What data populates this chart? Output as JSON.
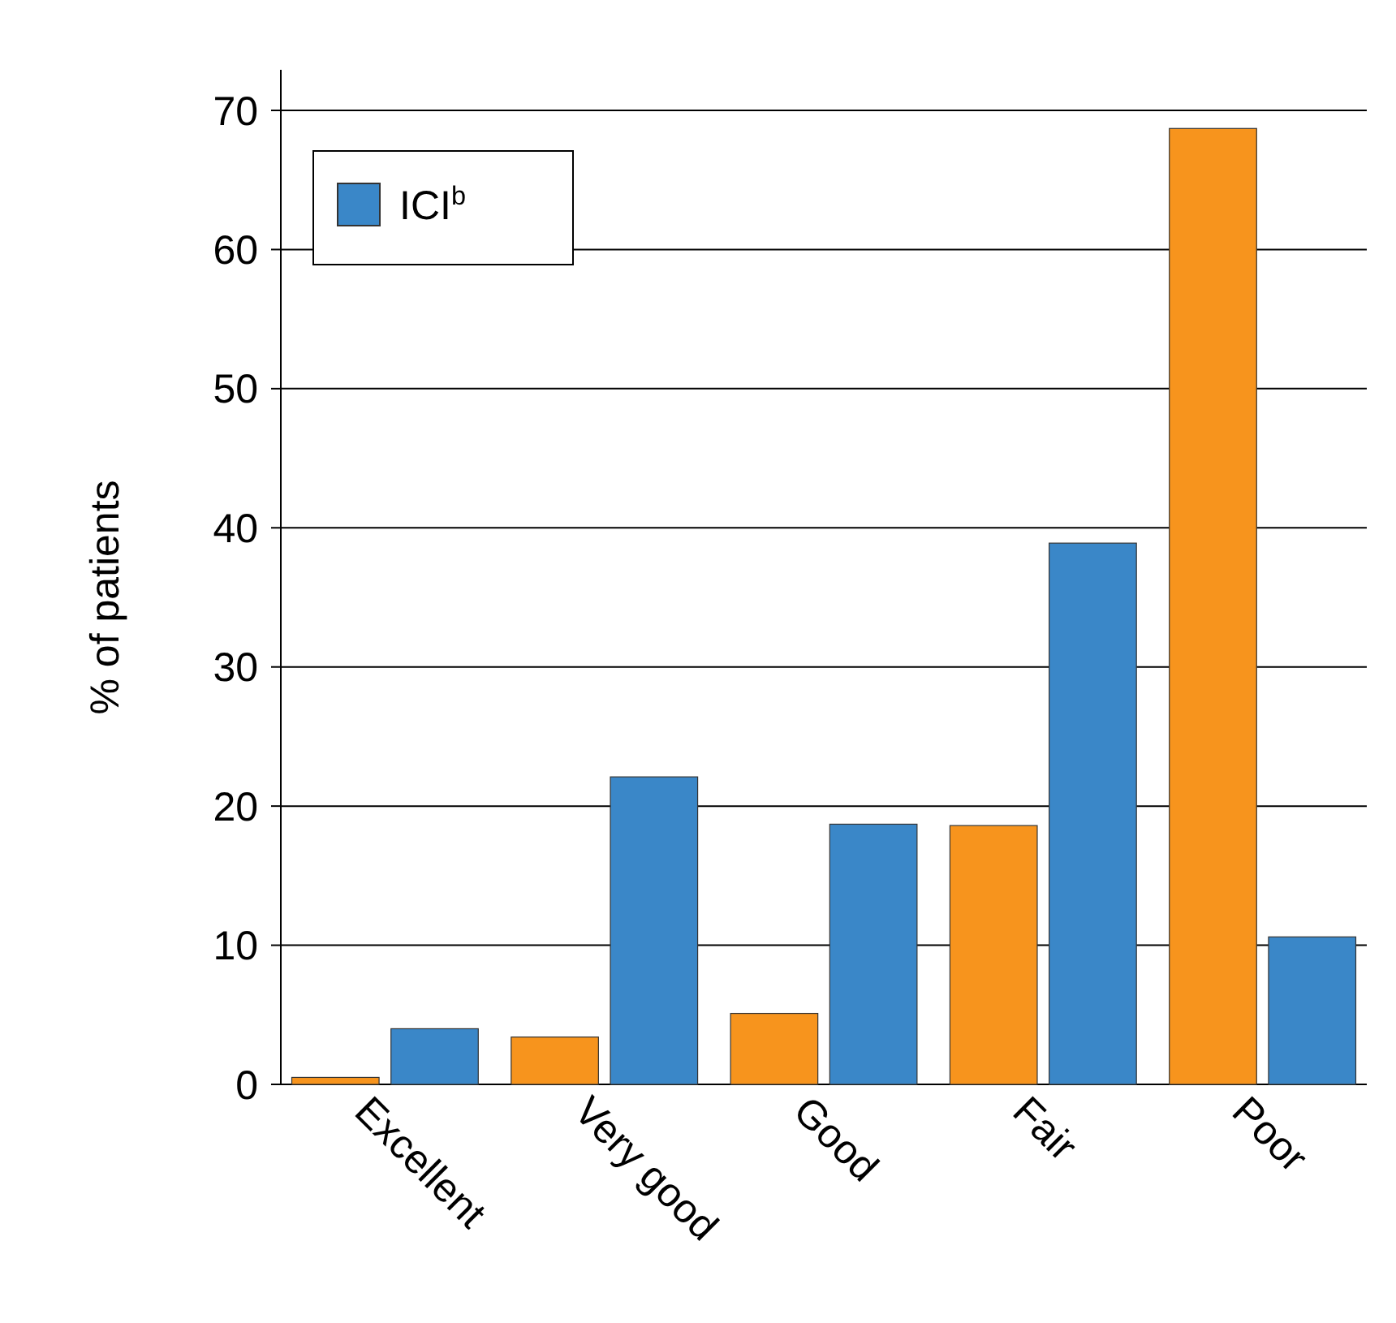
{
  "chart_data": {
    "type": "bar",
    "ylabel": "% of patients",
    "categories": [
      "Excellent",
      "Very good",
      "Good",
      "Fair",
      "Poor"
    ],
    "series": [
      {
        "color": "#f7941d",
        "values": [
          0.5,
          3.4,
          5.1,
          18.6,
          68.7
        ]
      },
      {
        "name": "ICI$^{b}$",
        "color": "#3a87c8",
        "values": [
          4.0,
          22.1,
          18.7,
          38.9,
          10.6
        ]
      }
    ],
    "ylim": [
      0,
      70
    ],
    "yticks": [
      0,
      10,
      20,
      30,
      40,
      50,
      60,
      70
    ],
    "grid": "y",
    "legend": "top left"
  }
}
